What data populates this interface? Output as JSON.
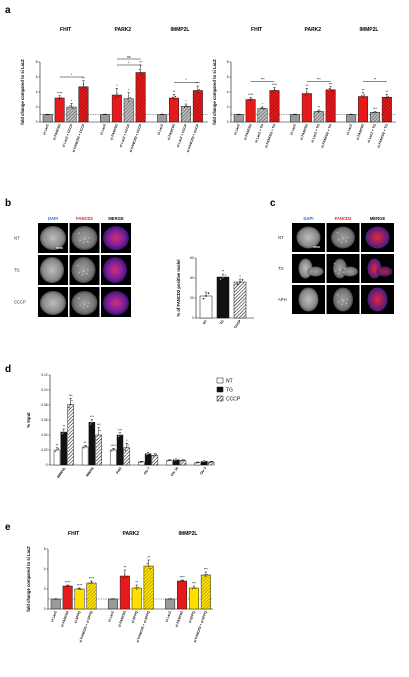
{
  "panels": {
    "a": "a",
    "b": "b",
    "c": "c",
    "d": "d",
    "e": "e"
  },
  "colors": {
    "grey": "#9a9a9a",
    "red": "#e41a1c",
    "yellow": "#ffe000",
    "white": "#ffffff",
    "black": "#111111"
  },
  "micro_b": {
    "cols": [
      "DAPI",
      "FANCD2",
      "MERGE"
    ],
    "rows": [
      "NT",
      "TG",
      "CCCP"
    ]
  },
  "micro_c": {
    "cols": [
      "DAPI",
      "FANCD2",
      "MERGE"
    ],
    "rows": [
      "NT",
      "TG",
      "APH"
    ]
  },
  "chart_data": [
    {
      "id": "a-left",
      "type": "bar",
      "ylabel": "fold change compared to si LacZ",
      "ylim": [
        0,
        8
      ],
      "yticks": [
        0,
        2,
        4,
        6,
        8
      ],
      "groups": [
        "FHIT",
        "PARK2",
        "IMMP2L"
      ],
      "categories": [
        "si LacZ",
        "si FANCD2",
        "si LacZ + CCCP",
        "si FANCD2 + CCCP"
      ],
      "fills": [
        "grey",
        "red",
        "grey",
        "red"
      ],
      "hatched": [
        false,
        false,
        true,
        true
      ],
      "values": [
        [
          1.0,
          3.2,
          2.0,
          4.7
        ],
        [
          1.0,
          3.6,
          3.1,
          6.6
        ],
        [
          1.0,
          3.2,
          2.1,
          4.2
        ]
      ],
      "errors": [
        [
          0.05,
          0.3,
          0.5,
          0.8
        ],
        [
          0.05,
          0.9,
          0.8,
          1.0
        ],
        [
          0.05,
          0.5,
          0.3,
          0.6
        ]
      ],
      "stars": [
        [
          "",
          "****",
          "*",
          "**"
        ],
        [
          "",
          "*",
          "*",
          "**"
        ],
        [
          "",
          "**",
          "*",
          "***"
        ]
      ],
      "brackets": [
        {
          "group": 0,
          "from": 1,
          "to": 3,
          "label": "*",
          "y": 6.0
        },
        {
          "group": 1,
          "from": 1,
          "to": 3,
          "label": "*",
          "y": 7.6
        },
        {
          "group": 1,
          "from": 1,
          "to": 3,
          "label": "ns",
          "y": 8.4
        },
        {
          "group": 2,
          "from": 1,
          "to": 3,
          "label": "*",
          "y": 5.3
        }
      ]
    },
    {
      "id": "a-right",
      "type": "bar",
      "ylabel": "fold change compared to si LacZ",
      "ylim": [
        0,
        8
      ],
      "yticks": [
        0,
        2,
        4,
        6,
        8
      ],
      "groups": [
        "FHIT",
        "PARK2",
        "IMMP2L"
      ],
      "categories": [
        "si LacZ",
        "si FANCD2",
        "si LacZ + TG",
        "si FANCD2 + TG"
      ],
      "fills": [
        "grey",
        "red",
        "grey",
        "red"
      ],
      "hatched": [
        false,
        false,
        true,
        true
      ],
      "values": [
        [
          1.0,
          3.0,
          1.8,
          4.2
        ],
        [
          1.0,
          3.8,
          1.4,
          4.3
        ],
        [
          1.0,
          3.4,
          1.3,
          3.3
        ]
      ],
      "errors": [
        [
          0.05,
          0.3,
          0.2,
          0.4
        ],
        [
          0.05,
          0.7,
          0.2,
          0.4
        ],
        [
          0.05,
          0.5,
          0.1,
          0.4
        ]
      ],
      "stars": [
        [
          "",
          "****",
          "*",
          "****"
        ],
        [
          "",
          "**",
          "**",
          "***"
        ],
        [
          "",
          "**",
          "***",
          "**"
        ]
      ],
      "brackets": [
        {
          "group": 0,
          "from": 1,
          "to": 3,
          "label": "***",
          "y": 5.4
        },
        {
          "group": 1,
          "from": 1,
          "to": 3,
          "label": "***",
          "y": 5.4
        },
        {
          "group": 2,
          "from": 1,
          "to": 3,
          "label": "**",
          "y": 5.4
        }
      ]
    },
    {
      "id": "b-bar",
      "type": "bar",
      "ylabel": "% of FANCD2 positive nuclei",
      "ylim": [
        0,
        60
      ],
      "yticks": [
        0,
        20,
        40,
        60
      ],
      "categories": [
        "NT",
        "TG",
        "CCCP"
      ],
      "fills": [
        "white",
        "black",
        "white"
      ],
      "hatched": [
        false,
        false,
        true
      ],
      "values": [
        22,
        41,
        36
      ],
      "errors": [
        4,
        3,
        3
      ],
      "stars": [
        "",
        "**",
        "*"
      ]
    },
    {
      "id": "d",
      "type": "bar",
      "ylabel": "% Input",
      "ylim": [
        0,
        0.12
      ],
      "yticks": [
        0,
        0.02,
        0.04,
        0.06,
        0.08,
        0.1,
        0.12
      ],
      "yticklabels": [
        "0",
        "0.02",
        "0.04",
        "0.06",
        "0.08",
        "0.10",
        "0.12"
      ],
      "categories": [
        "IMMP2L",
        "WWOX",
        "FHIT",
        "Chr 7",
        "Chr 16",
        "Chr 3"
      ],
      "series": [
        {
          "name": "NT",
          "fill": "white",
          "hatched": false,
          "values": [
            0.02,
            0.024,
            0.02,
            0.004,
            0.006,
            0.003
          ],
          "errors": [
            0.003,
            0.002,
            0.002,
            0.001,
            0.001,
            0.001
          ],
          "stars": [
            "**",
            "**",
            "****",
            "",
            "",
            ""
          ]
        },
        {
          "name": "TG",
          "fill": "black",
          "hatched": false,
          "values": [
            0.044,
            0.057,
            0.04,
            0.015,
            0.007,
            0.005
          ],
          "errors": [
            0.004,
            0.004,
            0.003,
            0.002,
            0.001,
            0.001
          ],
          "stars": [
            "**",
            "***",
            "***",
            "",
            "",
            ""
          ]
        },
        {
          "name": "CCCP",
          "fill": "white",
          "hatched": true,
          "values": [
            0.081,
            0.04,
            0.023,
            0.013,
            0.006,
            0.004
          ],
          "errors": [
            0.008,
            0.01,
            0.006,
            0.002,
            0.001,
            0.001
          ],
          "stars": [
            "***",
            "***",
            "*",
            "",
            "",
            ""
          ]
        }
      ],
      "legend_position": "top-right"
    },
    {
      "id": "e",
      "type": "bar",
      "ylabel": "fold change compared to si LacZ",
      "ylim": [
        0,
        6
      ],
      "yticks": [
        0,
        2,
        4,
        6
      ],
      "groups": [
        "FHIT",
        "PARK2",
        "IMMP2L"
      ],
      "categories": [
        "si LacZ",
        "si FANCD2",
        "si SFPQ",
        "si FANCD2 + si SFPQ"
      ],
      "fills": [
        "grey",
        "red",
        "yellow",
        "yellow"
      ],
      "hatched": [
        false,
        false,
        false,
        true
      ],
      "values": [
        [
          1.0,
          2.3,
          2.0,
          2.6
        ],
        [
          1.0,
          3.3,
          2.1,
          4.3
        ],
        [
          1.0,
          2.8,
          2.1,
          3.4
        ]
      ],
      "errors": [
        [
          0.03,
          0.1,
          0.1,
          0.2
        ],
        [
          0.03,
          0.6,
          0.3,
          0.6
        ],
        [
          0.03,
          0.1,
          0.2,
          0.3
        ]
      ],
      "stars": [
        [
          "",
          "****",
          "****",
          "****"
        ],
        [
          "",
          "**",
          "**",
          "**"
        ],
        [
          "",
          "****",
          "***",
          "***"
        ]
      ]
    }
  ]
}
